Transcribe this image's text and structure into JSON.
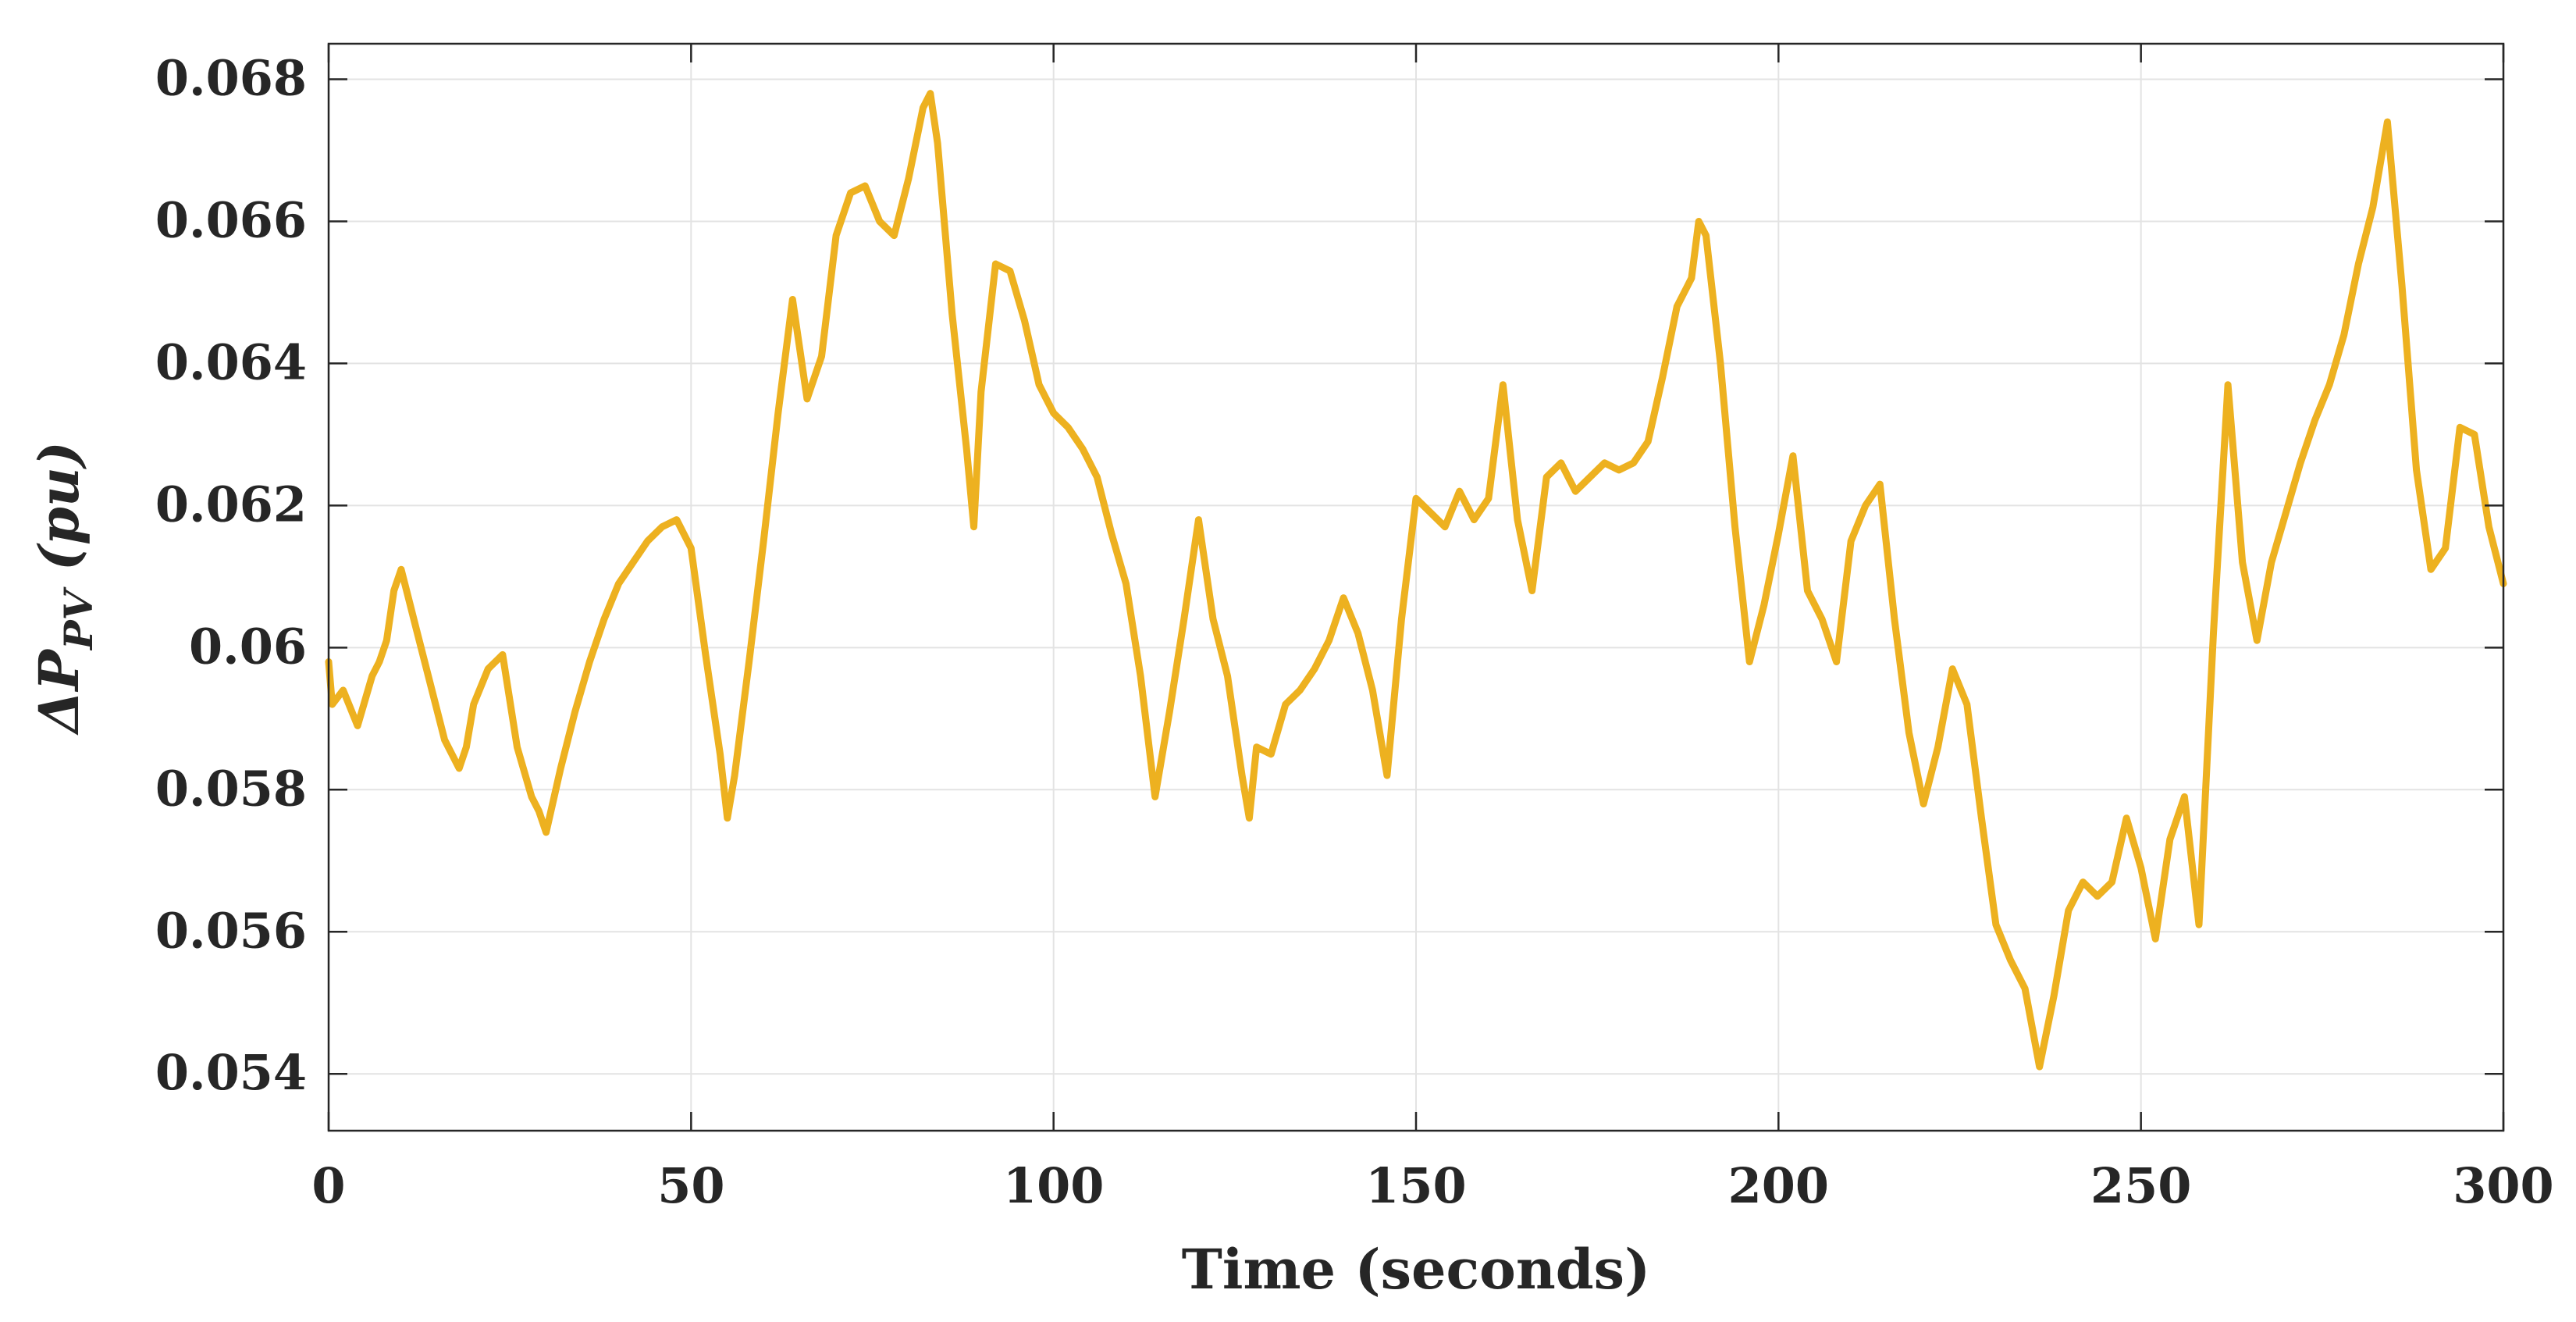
{
  "chart_data": {
    "type": "line",
    "title": "",
    "xlabel": "Time (seconds)",
    "ylabel": {
      "symbol": "ΔP",
      "subscript": "PV",
      "unit": " (pu)"
    },
    "xlim": [
      0,
      300
    ],
    "ylim": [
      0.0532,
      0.0685
    ],
    "xticks": [
      0,
      50,
      100,
      150,
      200,
      250,
      300
    ],
    "xtick_labels": [
      "0",
      "50",
      "100",
      "150",
      "200",
      "250",
      "300"
    ],
    "yticks": [
      0.054,
      0.056,
      0.058,
      0.06,
      0.062,
      0.064,
      0.066,
      0.068
    ],
    "ytick_labels": [
      "0.054",
      "0.056",
      "0.058",
      "0.06",
      "0.062",
      "0.064",
      "0.066",
      "0.068"
    ],
    "grid": true,
    "series_color": "#EDB120",
    "series": [
      {
        "x": [
          0,
          0.5,
          2,
          4,
          6,
          7,
          8,
          9,
          10,
          11,
          12,
          14,
          16,
          18,
          19,
          20,
          22,
          24,
          26,
          28,
          29,
          30,
          32,
          34,
          36,
          38,
          40,
          42,
          44,
          46,
          48,
          50,
          52,
          54,
          55,
          56,
          58,
          60,
          62,
          64,
          66,
          68,
          70,
          72,
          74,
          76,
          78,
          80,
          82,
          83,
          84,
          86,
          88,
          89,
          90,
          92,
          94,
          96,
          98,
          100,
          102,
          104,
          106,
          108,
          110,
          112,
          114,
          116,
          118,
          120,
          122,
          124,
          126,
          127,
          128,
          130,
          132,
          134,
          136,
          138,
          140,
          142,
          144,
          146,
          148,
          150,
          152,
          154,
          156,
          158,
          160,
          162,
          164,
          166,
          168,
          170,
          172,
          174,
          176,
          178,
          180,
          182,
          184,
          186,
          188,
          189,
          190,
          192,
          194,
          196,
          198,
          200,
          202,
          204,
          206,
          208,
          210,
          212,
          214,
          216,
          218,
          220,
          222,
          224,
          226,
          228,
          230,
          232,
          234,
          236,
          238,
          240,
          242,
          244,
          246,
          248,
          250,
          252,
          254,
          256,
          258,
          260,
          262,
          264,
          266,
          268,
          270,
          272,
          274,
          276,
          278,
          280,
          282,
          284,
          286,
          288,
          290,
          292,
          294,
          296,
          298,
          300
        ],
        "y": [
          0.0598,
          0.0592,
          0.0594,
          0.0589,
          0.0596,
          0.0598,
          0.0601,
          0.0608,
          0.0611,
          0.0607,
          0.0603,
          0.0595,
          0.0587,
          0.0583,
          0.0586,
          0.0592,
          0.0597,
          0.0599,
          0.0586,
          0.0579,
          0.0577,
          0.0574,
          0.0583,
          0.0591,
          0.0598,
          0.0604,
          0.0609,
          0.0612,
          0.0615,
          0.0617,
          0.0618,
          0.0614,
          0.0599,
          0.0585,
          0.0576,
          0.0582,
          0.0598,
          0.0615,
          0.0633,
          0.0649,
          0.0635,
          0.0641,
          0.0658,
          0.0664,
          0.0665,
          0.066,
          0.0658,
          0.0666,
          0.0676,
          0.0678,
          0.0671,
          0.0647,
          0.0628,
          0.0617,
          0.0636,
          0.0654,
          0.0653,
          0.0646,
          0.0637,
          0.0633,
          0.0631,
          0.0628,
          0.0624,
          0.0616,
          0.0609,
          0.0596,
          0.0579,
          0.0591,
          0.0604,
          0.0618,
          0.0604,
          0.0596,
          0.0582,
          0.0576,
          0.0586,
          0.0585,
          0.0592,
          0.0594,
          0.0597,
          0.0601,
          0.0607,
          0.0602,
          0.0594,
          0.0582,
          0.0604,
          0.0621,
          0.0619,
          0.0617,
          0.0622,
          0.0618,
          0.0621,
          0.0637,
          0.0618,
          0.0608,
          0.0624,
          0.0626,
          0.0622,
          0.0624,
          0.0626,
          0.0625,
          0.0626,
          0.0629,
          0.0638,
          0.0648,
          0.0652,
          0.066,
          0.0658,
          0.064,
          0.0617,
          0.0598,
          0.0606,
          0.0616,
          0.0627,
          0.0608,
          0.0604,
          0.0598,
          0.0615,
          0.062,
          0.0623,
          0.0604,
          0.0588,
          0.0578,
          0.0586,
          0.0597,
          0.0592,
          0.0576,
          0.0561,
          0.0556,
          0.0552,
          0.0541,
          0.0551,
          0.0563,
          0.0567,
          0.0565,
          0.0567,
          0.0576,
          0.0569,
          0.0559,
          0.0573,
          0.0579,
          0.0561,
          0.0602,
          0.0637,
          0.0612,
          0.0601,
          0.0612,
          0.0619,
          0.0626,
          0.0632,
          0.0637,
          0.0644,
          0.0654,
          0.0662,
          0.0674,
          0.0651,
          0.0625,
          0.0611,
          0.0614,
          0.0631,
          0.063,
          0.0617,
          0.0609
        ]
      }
    ]
  }
}
